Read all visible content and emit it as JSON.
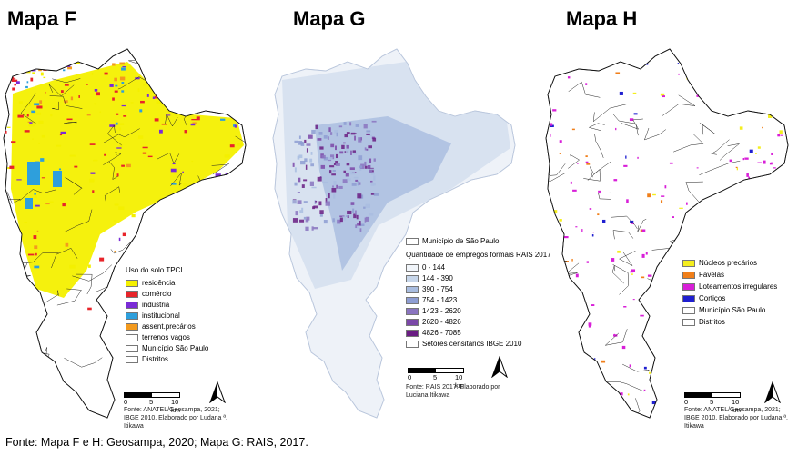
{
  "maps": {
    "f": {
      "title": "Mapa F",
      "legend_title": "Uso do solo TPCL",
      "legend": [
        {
          "label": "residência",
          "color": "#f4f000"
        },
        {
          "label": "comércio",
          "color": "#e8242a"
        },
        {
          "label": "indústria",
          "color": "#7a2cd6"
        },
        {
          "label": "institucional",
          "color": "#2e9fdc"
        },
        {
          "label": "assent.precários",
          "color": "#f39a1e"
        },
        {
          "label": "terrenos vagos",
          "color": "#ffffff"
        },
        {
          "label": "Município São Paulo",
          "color": "#ffffff"
        },
        {
          "label": "Distritos",
          "color": "#ffffff"
        }
      ],
      "scale": {
        "zero": "0",
        "mid": "5",
        "end": "10 km"
      },
      "credit": "Fonte: ANATEL/Geosampa, 2021; IBGE 2010. Elaborado por Ludana ª. Itikawa"
    },
    "g": {
      "title": "Mapa G",
      "legend_boundary": "Município de São Paulo",
      "legend_title": "Quantidade de empregos formais RAIS 2017",
      "legend": [
        {
          "label": "0 - 144",
          "color": "#f1f5fa"
        },
        {
          "label": "144 - 390",
          "color": "#c7d6ea"
        },
        {
          "label": "390 - 754",
          "color": "#a9bde0"
        },
        {
          "label": "754 - 1423",
          "color": "#8e9dd2"
        },
        {
          "label": "1423 - 2620",
          "color": "#8a74bf"
        },
        {
          "label": "2620 - 4826",
          "color": "#7b48a8"
        },
        {
          "label": "4826 - 7085",
          "color": "#6a1d83"
        },
        {
          "label": "Setores censitários IBGE 2010",
          "color": "#ffffff"
        }
      ],
      "scale": {
        "zero": "0",
        "mid": "5",
        "end": "10 km"
      },
      "credit": "Fonte: RAIS 2017. Elaborado por Luciana Itikawa"
    },
    "h": {
      "title": "Mapa H",
      "legend": [
        {
          "label": "Núcleos precários",
          "color": "#f4ee1e"
        },
        {
          "label": "Favelas",
          "color": "#f07f1a"
        },
        {
          "label": "Loteamentos irregulares",
          "color": "#d81fd8"
        },
        {
          "label": "Cortiços",
          "color": "#1f1fd0"
        },
        {
          "label": "Município São Paulo",
          "color": "#ffffff"
        },
        {
          "label": "Distritos",
          "color": "#ffffff"
        }
      ],
      "scale": {
        "zero": "0",
        "mid": "5",
        "end": "10 km"
      },
      "credit": "Fonte: ANATEL/Geosampa, 2021; IBGE 2010. Elaborado por Ludana ª. Itikawa"
    }
  },
  "source_note": "Fonte: Mapa F e H: Geosampa, 2020; Mapa G: RAIS, 2017."
}
